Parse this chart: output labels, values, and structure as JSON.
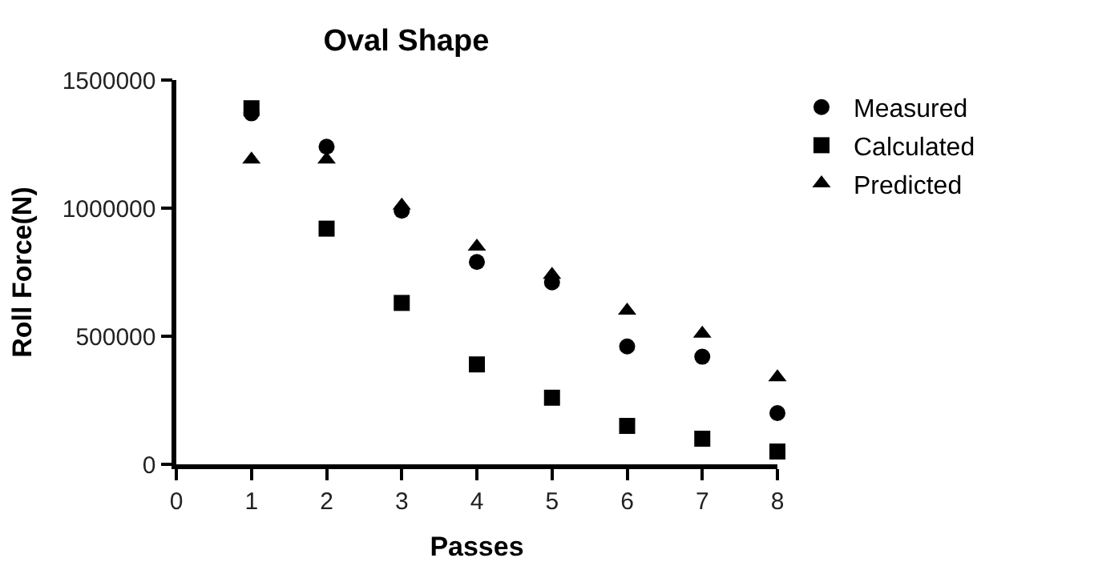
{
  "chart_data": {
    "type": "scatter",
    "title": "Oval Shape",
    "xlabel": "Passes",
    "ylabel": "Roll Force(N)",
    "x": [
      1,
      2,
      3,
      4,
      5,
      6,
      7,
      8
    ],
    "series": [
      {
        "name": "Measured",
        "color": "#000000",
        "marker": "circle",
        "values": [
          1370000,
          1240000,
          990000,
          790000,
          710000,
          460000,
          420000,
          200000
        ]
      },
      {
        "name": "Calculated",
        "color": "#000000",
        "marker": "square",
        "values": [
          1390000,
          920000,
          630000,
          390000,
          260000,
          150000,
          100000,
          50000
        ]
      },
      {
        "name": "Predicted",
        "color": "#000000",
        "marker": "triangle",
        "values": [
          1190000,
          1190000,
          1010000,
          850000,
          740000,
          600000,
          510000,
          340000
        ]
      }
    ],
    "xlim": [
      0,
      8
    ],
    "xticks": [
      0,
      1,
      2,
      3,
      4,
      5,
      6,
      7,
      8
    ],
    "ylim": [
      0,
      1500000
    ],
    "yticks": [
      0,
      500000,
      1000000,
      1500000
    ],
    "legend": "right"
  }
}
